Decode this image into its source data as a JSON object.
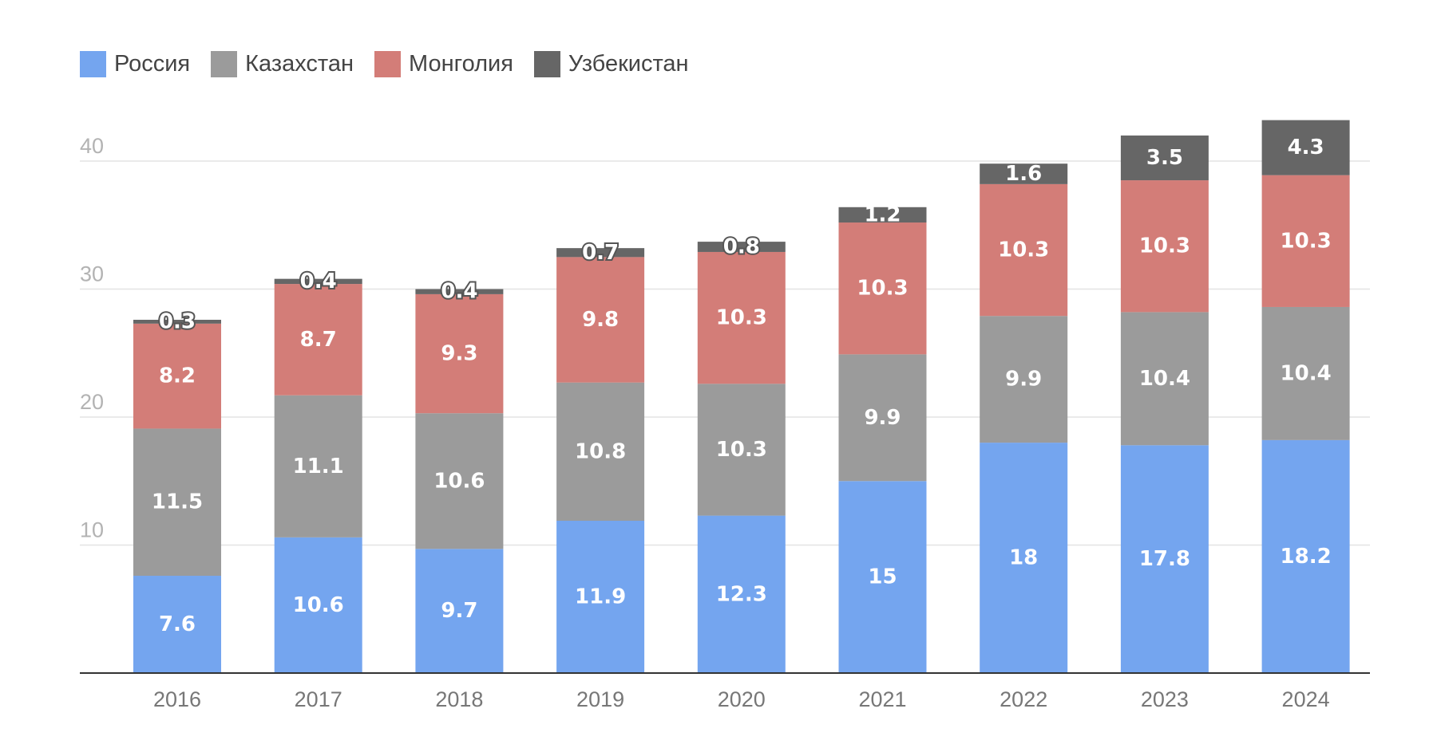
{
  "chart_data": {
    "type": "bar",
    "stacked": true,
    "categories": [
      "2016",
      "2017",
      "2018",
      "2019",
      "2020",
      "2021",
      "2022",
      "2023",
      "2024"
    ],
    "series": [
      {
        "name": "Россия",
        "color": "#74a5ef",
        "values": [
          7.6,
          10.6,
          9.7,
          11.9,
          12.3,
          15,
          18,
          17.8,
          18.2
        ]
      },
      {
        "name": "Казахстан",
        "color": "#9b9b9b",
        "values": [
          11.5,
          11.1,
          10.6,
          10.8,
          10.3,
          9.9,
          9.9,
          10.4,
          10.4
        ]
      },
      {
        "name": "Монголия",
        "color": "#d37d78",
        "values": [
          8.2,
          8.7,
          9.3,
          9.8,
          10.3,
          10.3,
          10.3,
          10.3,
          10.3
        ]
      },
      {
        "name": "Узбекистан",
        "color": "#666666",
        "values": [
          0.3,
          0.4,
          0.4,
          0.7,
          0.8,
          1.2,
          1.6,
          3.5,
          4.3
        ]
      }
    ],
    "yticks": [
      10,
      20,
      30,
      40
    ],
    "ylim": [
      0,
      43
    ],
    "grid": true,
    "legend_position": "top-left"
  }
}
